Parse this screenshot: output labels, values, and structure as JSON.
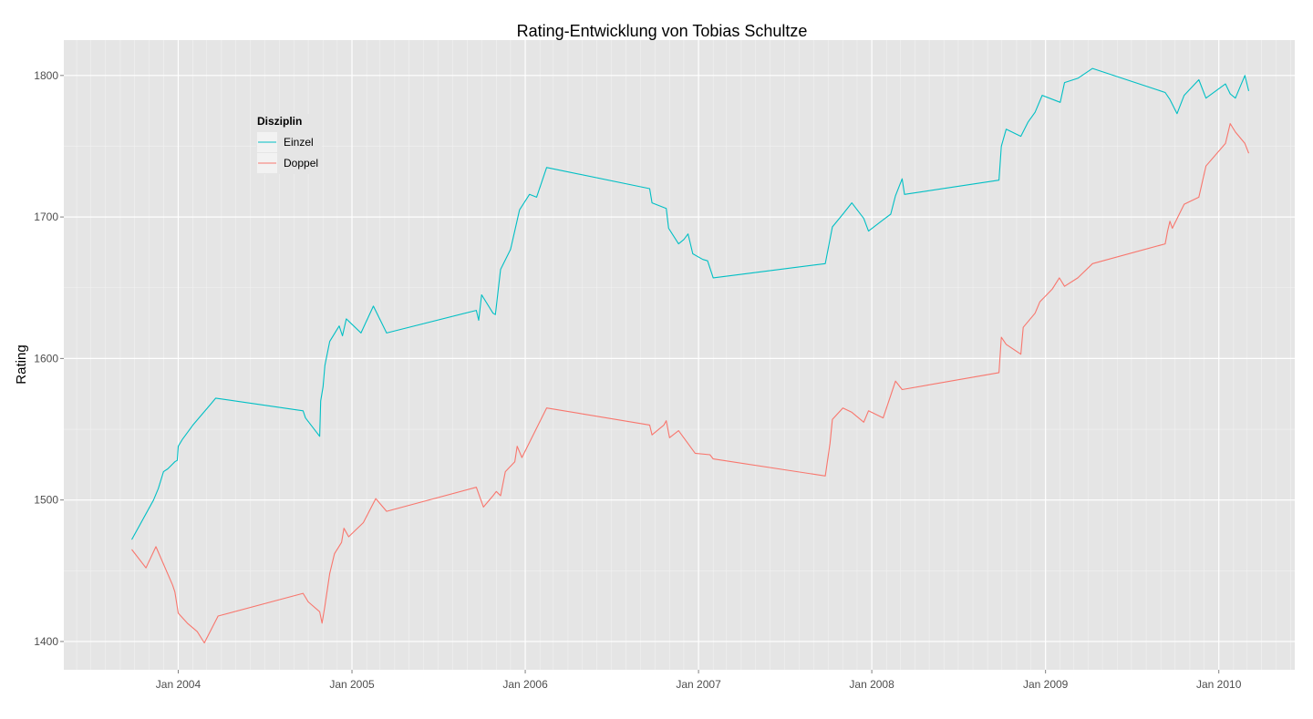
{
  "chart_data": {
    "type": "line",
    "title": "Rating-Entwicklung von Tobias Schultze",
    "xlabel": "",
    "ylabel": "Rating",
    "ylim": [
      1380,
      1825
    ],
    "xlim": [
      "2003-05-05",
      "2010-06-10"
    ],
    "grid": true,
    "legend_position": "top-left",
    "x_ticks": [
      {
        "date": "2004-01-01",
        "label": "Jan 2004"
      },
      {
        "date": "2005-01-01",
        "label": "Jan 2005"
      },
      {
        "date": "2006-01-01",
        "label": "Jan 2006"
      },
      {
        "date": "2007-01-01",
        "label": "Jan 2007"
      },
      {
        "date": "2008-01-01",
        "label": "Jan 2008"
      },
      {
        "date": "2009-01-01",
        "label": "Jan 2009"
      },
      {
        "date": "2010-01-01",
        "label": "Jan 2010"
      }
    ],
    "y_ticks": [
      {
        "value": 1400,
        "label": "1400"
      },
      {
        "value": 1500,
        "label": "1500"
      },
      {
        "value": 1600,
        "label": "1600"
      },
      {
        "value": 1700,
        "label": "1700"
      },
      {
        "value": 1800,
        "label": "1800"
      }
    ],
    "legend": {
      "title": "Disziplin",
      "items": [
        {
          "label": "Einzel",
          "color": "#00BFC4"
        },
        {
          "label": "Doppel",
          "color": "#F8766D"
        }
      ]
    },
    "series": [
      {
        "name": "Einzel",
        "color": "#00BFC4",
        "points": [
          [
            "2003-09-25",
            1472
          ],
          [
            "2003-11-10",
            1500
          ],
          [
            "2003-11-20",
            1508
          ],
          [
            "2003-12-01",
            1520
          ],
          [
            "2003-12-10",
            1522
          ],
          [
            "2003-12-25",
            1527
          ],
          [
            "2003-12-30",
            1528
          ],
          [
            "2004-01-01",
            1538
          ],
          [
            "2004-01-10",
            1543
          ],
          [
            "2004-02-01",
            1553
          ],
          [
            "2004-03-10",
            1568
          ],
          [
            "2004-03-20",
            1572
          ],
          [
            "2004-09-20",
            1563
          ],
          [
            "2004-09-25",
            1558
          ],
          [
            "2004-10-25",
            1545
          ],
          [
            "2004-10-27",
            1570
          ],
          [
            "2004-11-01",
            1580
          ],
          [
            "2004-11-05",
            1595
          ],
          [
            "2004-11-15",
            1612
          ],
          [
            "2004-12-05",
            1623
          ],
          [
            "2004-12-12",
            1616
          ],
          [
            "2004-12-20",
            1628
          ],
          [
            "2005-01-20",
            1618
          ],
          [
            "2005-02-15",
            1637
          ],
          [
            "2005-03-15",
            1618
          ],
          [
            "2005-09-20",
            1634
          ],
          [
            "2005-09-25",
            1627
          ],
          [
            "2005-10-01",
            1645
          ],
          [
            "2005-10-25",
            1632
          ],
          [
            "2005-10-30",
            1631
          ],
          [
            "2005-11-10",
            1663
          ],
          [
            "2005-12-01",
            1677
          ],
          [
            "2005-12-20",
            1705
          ],
          [
            "2006-01-10",
            1716
          ],
          [
            "2006-01-25",
            1714
          ],
          [
            "2006-02-15",
            1735
          ],
          [
            "2006-09-20",
            1720
          ],
          [
            "2006-09-25",
            1710
          ],
          [
            "2006-10-25",
            1706
          ],
          [
            "2006-10-30",
            1692
          ],
          [
            "2006-11-20",
            1681
          ],
          [
            "2006-12-01",
            1684
          ],
          [
            "2006-12-10",
            1688
          ],
          [
            "2006-12-20",
            1674
          ],
          [
            "2007-01-10",
            1670
          ],
          [
            "2007-01-20",
            1669
          ],
          [
            "2007-02-01",
            1657
          ],
          [
            "2007-09-25",
            1667
          ],
          [
            "2007-10-10",
            1693
          ],
          [
            "2007-11-01",
            1702
          ],
          [
            "2007-11-20",
            1710
          ],
          [
            "2007-12-15",
            1699
          ],
          [
            "2007-12-25",
            1690
          ],
          [
            "2008-01-25",
            1698
          ],
          [
            "2008-02-10",
            1702
          ],
          [
            "2008-02-20",
            1715
          ],
          [
            "2008-03-05",
            1727
          ],
          [
            "2008-03-10",
            1716
          ],
          [
            "2008-09-25",
            1726
          ],
          [
            "2008-09-30",
            1750
          ],
          [
            "2008-10-10",
            1762
          ],
          [
            "2008-11-10",
            1757
          ],
          [
            "2008-11-25",
            1767
          ],
          [
            "2008-12-10",
            1774
          ],
          [
            "2008-12-25",
            1786
          ],
          [
            "2009-02-01",
            1781
          ],
          [
            "2009-02-10",
            1795
          ],
          [
            "2009-03-10",
            1798
          ],
          [
            "2009-04-10",
            1805
          ],
          [
            "2009-09-10",
            1788
          ],
          [
            "2009-09-20",
            1783
          ],
          [
            "2009-10-05",
            1773
          ],
          [
            "2009-10-20",
            1786
          ],
          [
            "2009-11-20",
            1797
          ],
          [
            "2009-12-05",
            1784
          ],
          [
            "2010-01-15",
            1794
          ],
          [
            "2010-01-25",
            1787
          ],
          [
            "2010-02-05",
            1784
          ],
          [
            "2010-02-25",
            1800
          ],
          [
            "2010-03-05",
            1789
          ]
        ]
      },
      {
        "name": "Doppel",
        "color": "#F8766D",
        "points": [
          [
            "2003-09-25",
            1465
          ],
          [
            "2003-10-25",
            1452
          ],
          [
            "2003-11-15",
            1467
          ],
          [
            "2003-12-20",
            1440
          ],
          [
            "2003-12-25",
            1435
          ],
          [
            "2004-01-01",
            1420
          ],
          [
            "2004-01-20",
            1413
          ],
          [
            "2004-02-10",
            1407
          ],
          [
            "2004-02-25",
            1399
          ],
          [
            "2004-03-25",
            1418
          ],
          [
            "2004-09-20",
            1434
          ],
          [
            "2004-10-01",
            1428
          ],
          [
            "2004-10-25",
            1421
          ],
          [
            "2004-10-30",
            1413
          ],
          [
            "2004-11-05",
            1425
          ],
          [
            "2004-11-15",
            1448
          ],
          [
            "2004-11-25",
            1462
          ],
          [
            "2004-12-10",
            1470
          ],
          [
            "2004-12-15",
            1480
          ],
          [
            "2004-12-25",
            1474
          ],
          [
            "2005-01-25",
            1484
          ],
          [
            "2005-02-20",
            1501
          ],
          [
            "2005-03-15",
            1492
          ],
          [
            "2005-09-20",
            1509
          ],
          [
            "2005-10-05",
            1495
          ],
          [
            "2005-10-25",
            1503
          ],
          [
            "2005-11-01",
            1506
          ],
          [
            "2005-11-10",
            1503
          ],
          [
            "2005-11-20",
            1520
          ],
          [
            "2005-12-10",
            1527
          ],
          [
            "2005-12-15",
            1538
          ],
          [
            "2005-12-25",
            1530
          ],
          [
            "2006-02-15",
            1565
          ],
          [
            "2006-09-20",
            1553
          ],
          [
            "2006-09-25",
            1546
          ],
          [
            "2006-10-20",
            1553
          ],
          [
            "2006-10-25",
            1556
          ],
          [
            "2006-11-01",
            1544
          ],
          [
            "2006-11-20",
            1549
          ],
          [
            "2006-12-25",
            1533
          ],
          [
            "2007-01-25",
            1532
          ],
          [
            "2007-02-01",
            1529
          ],
          [
            "2007-09-25",
            1517
          ],
          [
            "2007-10-05",
            1540
          ],
          [
            "2007-10-10",
            1557
          ],
          [
            "2007-11-01",
            1565
          ],
          [
            "2007-11-20",
            1562
          ],
          [
            "2007-12-15",
            1555
          ],
          [
            "2007-12-25",
            1563
          ],
          [
            "2008-01-25",
            1558
          ],
          [
            "2008-02-10",
            1574
          ],
          [
            "2008-02-20",
            1584
          ],
          [
            "2008-03-05",
            1578
          ],
          [
            "2008-09-25",
            1590
          ],
          [
            "2008-09-30",
            1615
          ],
          [
            "2008-10-10",
            1610
          ],
          [
            "2008-11-10",
            1603
          ],
          [
            "2008-11-15",
            1622
          ],
          [
            "2008-12-10",
            1632
          ],
          [
            "2008-12-20",
            1640
          ],
          [
            "2009-01-15",
            1649
          ],
          [
            "2009-01-30",
            1657
          ],
          [
            "2009-02-10",
            1651
          ],
          [
            "2009-03-10",
            1657
          ],
          [
            "2009-04-10",
            1667
          ],
          [
            "2009-09-10",
            1681
          ],
          [
            "2009-09-15",
            1690
          ],
          [
            "2009-09-20",
            1697
          ],
          [
            "2009-09-25",
            1692
          ],
          [
            "2009-10-20",
            1709
          ],
          [
            "2009-11-20",
            1714
          ],
          [
            "2009-12-05",
            1736
          ],
          [
            "2010-01-15",
            1752
          ],
          [
            "2010-01-25",
            1766
          ],
          [
            "2010-02-05",
            1760
          ],
          [
            "2010-02-25",
            1752
          ],
          [
            "2010-03-05",
            1745
          ]
        ]
      }
    ]
  }
}
